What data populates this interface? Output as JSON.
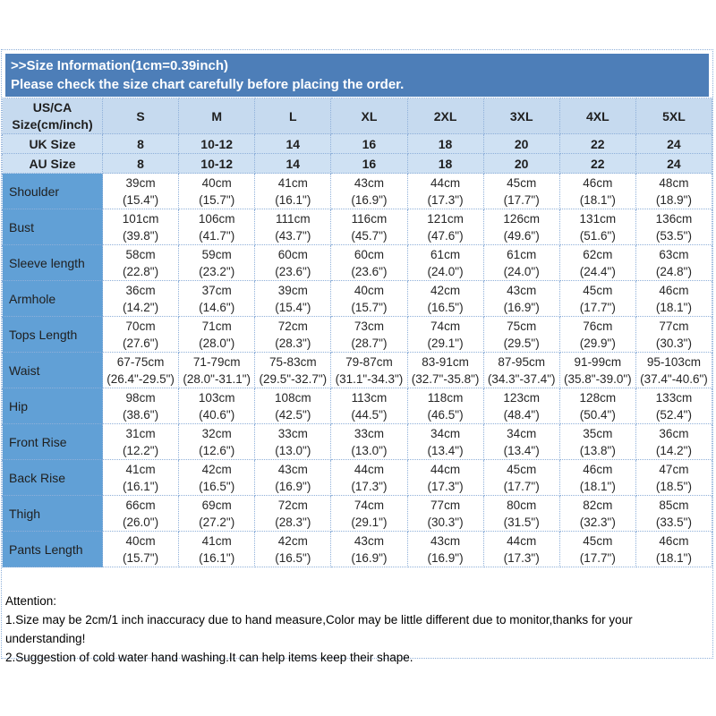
{
  "banner": {
    "line1": ">>Size Information(1cm=0.39inch)",
    "line2": "Please check the size chart carefully before placing the order."
  },
  "table": {
    "corner_header": "US/CA\nSize(cm/inch)",
    "size_headers": [
      "S",
      "M",
      "L",
      "XL",
      "2XL",
      "3XL",
      "4XL",
      "5XL"
    ],
    "uk_row": {
      "label": "UK Size",
      "values": [
        "8",
        "10-12",
        "14",
        "16",
        "18",
        "20",
        "22",
        "24"
      ]
    },
    "au_row": {
      "label": "AU Size",
      "values": [
        "8",
        "10-12",
        "14",
        "16",
        "18",
        "20",
        "22",
        "24"
      ]
    },
    "rows": [
      {
        "label": "Shoulder",
        "cells": [
          "39cm\n(15.4\")",
          "40cm\n(15.7\")",
          "41cm\n(16.1\")",
          "43cm\n(16.9\")",
          "44cm\n(17.3\")",
          "45cm\n(17.7\")",
          "46cm\n(18.1\")",
          "48cm\n(18.9\")"
        ]
      },
      {
        "label": "Bust",
        "cells": [
          "101cm\n(39.8\")",
          "106cm\n(41.7\")",
          "111cm\n(43.7\")",
          "116cm\n(45.7\")",
          "121cm\n(47.6\")",
          "126cm\n(49.6\")",
          "131cm\n(51.6\")",
          "136cm\n(53.5\")"
        ]
      },
      {
        "label": "Sleeve length",
        "cells": [
          "58cm\n(22.8\")",
          "59cm\n(23.2\")",
          "60cm\n(23.6\")",
          "60cm\n(23.6\")",
          "61cm\n(24.0\")",
          "61cm\n(24.0\")",
          "62cm\n(24.4\")",
          "63cm\n(24.8\")"
        ]
      },
      {
        "label": "Armhole",
        "cells": [
          "36cm\n(14.2\")",
          "37cm\n(14.6\")",
          "39cm\n(15.4\")",
          "40cm\n(15.7\")",
          "42cm\n(16.5\")",
          "43cm\n(16.9\")",
          "45cm\n(17.7\")",
          "46cm\n(18.1\")"
        ]
      },
      {
        "label": "Tops Length",
        "cells": [
          "70cm\n(27.6\")",
          "71cm\n(28.0\")",
          "72cm\n(28.3\")",
          "73cm\n(28.7\")",
          "74cm\n(29.1\")",
          "75cm\n(29.5\")",
          "76cm\n(29.9\")",
          "77cm\n(30.3\")"
        ]
      },
      {
        "label": "Waist",
        "cells": [
          "67-75cm\n(26.4\"-29.5\")",
          "71-79cm\n(28.0\"-31.1\")",
          "75-83cm\n(29.5\"-32.7\")",
          "79-87cm\n(31.1\"-34.3\")",
          "83-91cm\n(32.7\"-35.8\")",
          "87-95cm\n(34.3\"-37.4\")",
          "91-99cm\n(35.8\"-39.0\")",
          "95-103cm\n(37.4\"-40.6\")"
        ]
      },
      {
        "label": "Hip",
        "cells": [
          "98cm\n(38.6\")",
          "103cm\n(40.6\")",
          "108cm\n(42.5\")",
          "113cm\n(44.5\")",
          "118cm\n(46.5\")",
          "123cm\n(48.4\")",
          "128cm\n(50.4\")",
          "133cm\n(52.4\")"
        ]
      },
      {
        "label": "Front Rise",
        "cells": [
          "31cm\n(12.2\")",
          "32cm\n(12.6\")",
          "33cm\n(13.0\")",
          "33cm\n(13.0\")",
          "34cm\n(13.4\")",
          "34cm\n(13.4\")",
          "35cm\n(13.8\")",
          "36cm\n(14.2\")"
        ]
      },
      {
        "label": "Back Rise",
        "cells": [
          "41cm\n(16.1\")",
          "42cm\n(16.5\")",
          "43cm\n(16.9\")",
          "44cm\n(17.3\")",
          "44cm\n(17.3\")",
          "45cm\n(17.7\")",
          "46cm\n(18.1\")",
          "47cm\n(18.5\")"
        ]
      },
      {
        "label": "Thigh",
        "cells": [
          "66cm\n(26.0\")",
          "69cm\n(27.2\")",
          "72cm\n(28.3\")",
          "74cm\n(29.1\")",
          "77cm\n(30.3\")",
          "80cm\n(31.5\")",
          "82cm\n(32.3\")",
          "85cm\n(33.5\")"
        ]
      },
      {
        "label": "Pants Length",
        "cells": [
          "40cm\n(15.7\")",
          "41cm\n(16.1\")",
          "42cm\n(16.5\")",
          "43cm\n(16.9\")",
          "43cm\n(16.9\")",
          "44cm\n(17.3\")",
          "45cm\n(17.7\")",
          "46cm\n(18.1\")"
        ]
      }
    ]
  },
  "attention": {
    "title": "Attention:",
    "note1": "1.Size may be 2cm/1 inch inaccuracy due to hand measure,Color may be little different due to monitor,thanks for your understanding!",
    "note2": "2.Suggestion of cold water hand washing.It can help items keep their shape."
  },
  "colors": {
    "banner_bg": "#4d7eb8",
    "banner_text": "#ffffff",
    "header_cell_bg": "#c6daef",
    "size_row_bg": "#cfe1f3",
    "label_column_bg": "#61a0d6",
    "grid_dotted": "#8fb0d9",
    "body_text": "#262626"
  }
}
